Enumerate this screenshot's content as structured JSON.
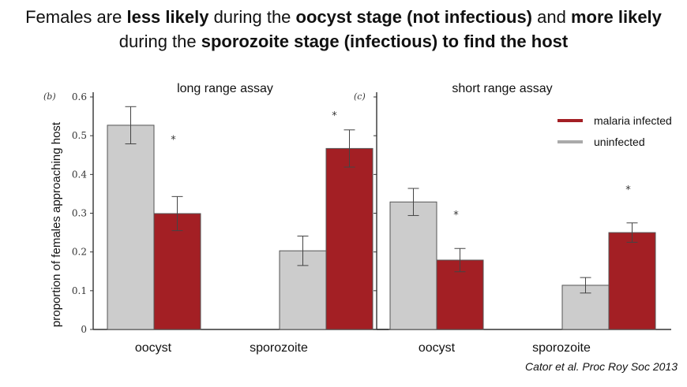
{
  "headline": {
    "p1": "Females are ",
    "b1": "less likely",
    "p2": " during the ",
    "b2": "oocyst stage (not infectious)",
    "p3": " and ",
    "b3": "more likely",
    "p4": "during the ",
    "b4": "sporozoite stage (infectious) to find the host"
  },
  "citation": "Cator et al. Proc Roy Soc 2013",
  "colors": {
    "infected": "#a31f24",
    "uninfected": "#cccccc",
    "bar_edge": "#555555"
  },
  "chart_data": [
    {
      "type": "bar",
      "panel": "(b)",
      "title": "long range assay",
      "ylabel": "proportion of females approaching host",
      "ylim": [
        0,
        0.6
      ],
      "yticks": [
        "0",
        "0.1",
        "0.2",
        "0.3",
        "0.4",
        "0.5",
        "0.6"
      ],
      "categories": [
        "oocyst",
        "sporozoite"
      ],
      "series": [
        {
          "name": "uninfected",
          "values": [
            0.527,
            0.203
          ],
          "err": [
            0.048,
            0.038
          ]
        },
        {
          "name": "malaria infected",
          "values": [
            0.299,
            0.467
          ],
          "err": [
            0.044,
            0.048
          ]
        }
      ],
      "significance": [
        "*",
        "*"
      ]
    },
    {
      "type": "bar",
      "panel": "(c)",
      "title": "short range assay",
      "ylabel": "",
      "ylim": [
        0,
        0.6
      ],
      "categories": [
        "oocyst",
        "sporozoite"
      ],
      "series": [
        {
          "name": "uninfected",
          "values": [
            0.329,
            0.114
          ],
          "err": [
            0.035,
            0.02
          ]
        },
        {
          "name": "malaria infected",
          "values": [
            0.179,
            0.25
          ],
          "err": [
            0.03,
            0.025
          ]
        }
      ],
      "significance": [
        "*",
        "*"
      ]
    }
  ],
  "legend": {
    "placement": "top-right",
    "items": [
      {
        "label": "malaria infected",
        "color": "#a31f24"
      },
      {
        "label": "uninfected",
        "color": "#aaaaaa"
      }
    ]
  }
}
